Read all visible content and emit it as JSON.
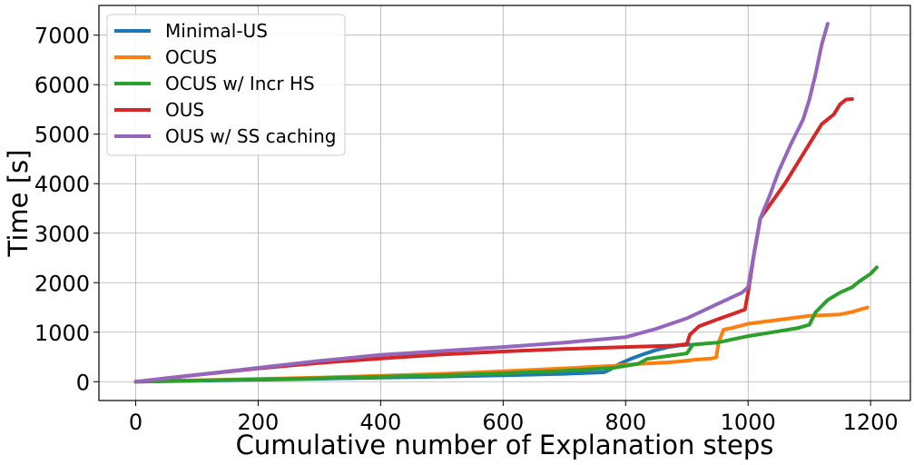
{
  "chart_data": {
    "type": "line",
    "title": "",
    "xlabel": "Cumulative number of Explanation steps",
    "ylabel": "Time [s]",
    "xlim": [
      -60,
      1265
    ],
    "ylim": [
      -380,
      7600
    ],
    "xticks": [
      0,
      200,
      400,
      600,
      800,
      1000,
      1200
    ],
    "yticks": [
      0,
      1000,
      2000,
      3000,
      4000,
      5000,
      6000,
      7000
    ],
    "grid": true,
    "legend_position": "upper-left",
    "series": [
      {
        "name": "Minimal-US",
        "color": "#1f77b4",
        "points": [
          [
            0,
            0
          ],
          [
            100,
            20
          ],
          [
            200,
            40
          ],
          [
            300,
            60
          ],
          [
            400,
            85
          ],
          [
            500,
            105
          ],
          [
            600,
            130
          ],
          [
            700,
            160
          ],
          [
            765,
            190
          ],
          [
            775,
            250
          ],
          [
            790,
            360
          ],
          [
            810,
            470
          ],
          [
            830,
            560
          ],
          [
            850,
            640
          ],
          [
            870,
            700
          ],
          [
            890,
            735
          ],
          [
            905,
            750
          ]
        ]
      },
      {
        "name": "OCUS",
        "color": "#ff7f0e",
        "points": [
          [
            0,
            0
          ],
          [
            100,
            30
          ],
          [
            200,
            55
          ],
          [
            300,
            85
          ],
          [
            400,
            120
          ],
          [
            500,
            160
          ],
          [
            600,
            210
          ],
          [
            700,
            270
          ],
          [
            780,
            320
          ],
          [
            820,
            360
          ],
          [
            870,
            390
          ],
          [
            890,
            410
          ],
          [
            910,
            440
          ],
          [
            940,
            470
          ],
          [
            948,
            490
          ],
          [
            952,
            800
          ],
          [
            960,
            1050
          ],
          [
            975,
            1090
          ],
          [
            1000,
            1170
          ],
          [
            1050,
            1250
          ],
          [
            1100,
            1330
          ],
          [
            1150,
            1360
          ],
          [
            1170,
            1410
          ],
          [
            1195,
            1500
          ]
        ]
      },
      {
        "name": "OCUS w/ Incr HS",
        "color": "#2ca02c",
        "points": [
          [
            0,
            0
          ],
          [
            100,
            25
          ],
          [
            200,
            45
          ],
          [
            300,
            70
          ],
          [
            400,
            100
          ],
          [
            500,
            130
          ],
          [
            600,
            170
          ],
          [
            700,
            220
          ],
          [
            780,
            280
          ],
          [
            820,
            360
          ],
          [
            835,
            460
          ],
          [
            870,
            520
          ],
          [
            900,
            570
          ],
          [
            910,
            750
          ],
          [
            950,
            790
          ],
          [
            1000,
            920
          ],
          [
            1050,
            1020
          ],
          [
            1080,
            1080
          ],
          [
            1100,
            1150
          ],
          [
            1110,
            1400
          ],
          [
            1130,
            1650
          ],
          [
            1150,
            1800
          ],
          [
            1170,
            1910
          ],
          [
            1180,
            2010
          ],
          [
            1200,
            2180
          ],
          [
            1210,
            2310
          ]
        ]
      },
      {
        "name": "OUS",
        "color": "#d62728",
        "points": [
          [
            0,
            0
          ],
          [
            50,
            70
          ],
          [
            100,
            140
          ],
          [
            200,
            270
          ],
          [
            300,
            380
          ],
          [
            400,
            470
          ],
          [
            500,
            550
          ],
          [
            600,
            610
          ],
          [
            700,
            660
          ],
          [
            800,
            700
          ],
          [
            880,
            730
          ],
          [
            900,
            760
          ],
          [
            905,
            950
          ],
          [
            920,
            1120
          ],
          [
            950,
            1260
          ],
          [
            980,
            1390
          ],
          [
            995,
            1460
          ],
          [
            1000,
            1800
          ],
          [
            1010,
            2600
          ],
          [
            1020,
            3300
          ],
          [
            1040,
            3650
          ],
          [
            1060,
            4000
          ],
          [
            1080,
            4400
          ],
          [
            1100,
            4800
          ],
          [
            1120,
            5200
          ],
          [
            1140,
            5400
          ],
          [
            1150,
            5600
          ],
          [
            1160,
            5700
          ],
          [
            1170,
            5710
          ]
        ]
      },
      {
        "name": "OUS w/ SS caching",
        "color": "#9467bd",
        "points": [
          [
            0,
            0
          ],
          [
            50,
            70
          ],
          [
            100,
            140
          ],
          [
            200,
            280
          ],
          [
            300,
            420
          ],
          [
            400,
            540
          ],
          [
            500,
            620
          ],
          [
            600,
            700
          ],
          [
            700,
            790
          ],
          [
            800,
            900
          ],
          [
            850,
            1070
          ],
          [
            900,
            1280
          ],
          [
            950,
            1570
          ],
          [
            990,
            1800
          ],
          [
            1000,
            1910
          ],
          [
            1010,
            2600
          ],
          [
            1020,
            3300
          ],
          [
            1035,
            3750
          ],
          [
            1050,
            4250
          ],
          [
            1070,
            4800
          ],
          [
            1090,
            5300
          ],
          [
            1100,
            5700
          ],
          [
            1110,
            6200
          ],
          [
            1120,
            6800
          ],
          [
            1130,
            7230
          ]
        ]
      }
    ]
  }
}
